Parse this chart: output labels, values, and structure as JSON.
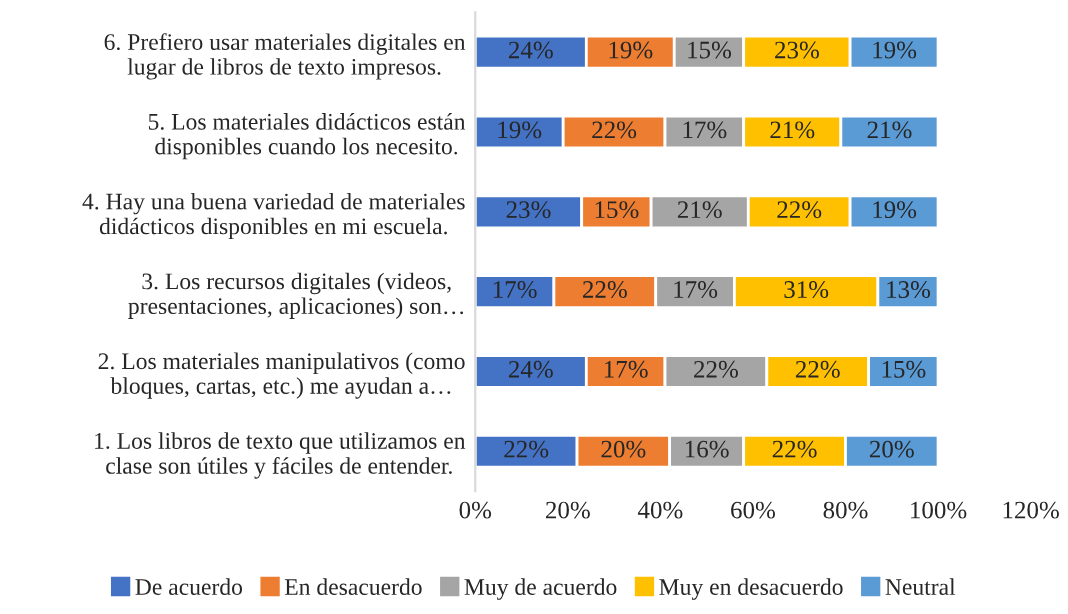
{
  "chart_data": {
    "type": "bar",
    "orientation": "horizontal",
    "stacked": true,
    "categories": [
      "6. Prefiero usar materiales digitales en\nlugar de libros de texto impresos.",
      "5. Los materiales didácticos están\ndisponibles cuando los necesito.",
      "4. Hay una buena variedad de materiales\ndidácticos disponibles en mi escuela.",
      "3. Los recursos digitales (videos,\npresentaciones, aplicaciones) son…",
      "2. Los materiales manipulativos (como\nbloques, cartas, etc.) me ayudan a…",
      "1. Los libros de texto que utilizamos en\nclase son útiles y fáciles de entender."
    ],
    "series": [
      {
        "name": "De acuerdo",
        "color": "#4472c4",
        "values": [
          24,
          19,
          23,
          17,
          24,
          22
        ],
        "value_labels": [
          "24%",
          "19%",
          "23%",
          "17%",
          "24%",
          "22%"
        ]
      },
      {
        "name": "En desacuerdo",
        "color": "#ed7d31",
        "values": [
          19,
          22,
          15,
          22,
          17,
          20
        ],
        "value_labels": [
          "19%",
          "22%",
          "15%",
          "22%",
          "17%",
          "20%"
        ]
      },
      {
        "name": "Muy de acuerdo",
        "color": "#a5a5a5",
        "values": [
          15,
          17,
          21,
          17,
          22,
          16
        ],
        "value_labels": [
          "15%",
          "17%",
          "21%",
          "17%",
          "22%",
          "16%"
        ]
      },
      {
        "name": "Muy en desacuerdo",
        "color": "#ffc000",
        "values": [
          23,
          21,
          22,
          31,
          22,
          22
        ],
        "value_labels": [
          "23%",
          "21%",
          "22%",
          "31%",
          "22%",
          "22%"
        ]
      },
      {
        "name": "Neutral",
        "color": "#5b9bd5",
        "values": [
          19,
          21,
          19,
          13,
          15,
          20
        ],
        "value_labels": [
          "19%",
          "21%",
          "19%",
          "13%",
          "15%",
          "20%"
        ]
      }
    ],
    "xlim": [
      0,
      120
    ],
    "xticks": [
      {
        "value": 0,
        "label": "0%"
      },
      {
        "value": 20,
        "label": "20%"
      },
      {
        "value": 40,
        "label": "40%"
      },
      {
        "value": 60,
        "label": "60%"
      },
      {
        "value": 80,
        "label": "80%"
      },
      {
        "value": 100,
        "label": "100%"
      },
      {
        "value": 120,
        "label": "120%"
      }
    ],
    "grid": false,
    "legend": "bottom"
  }
}
